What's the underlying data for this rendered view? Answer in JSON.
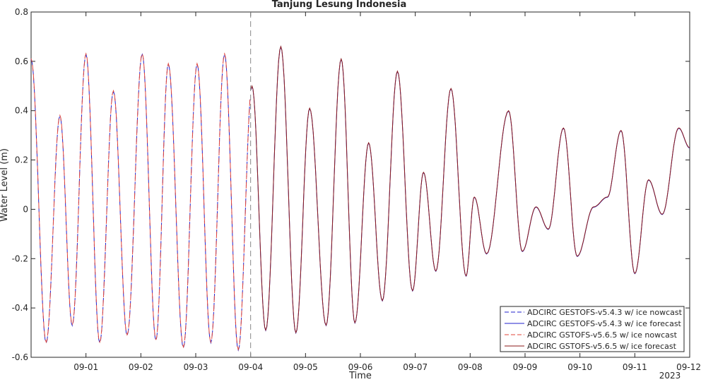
{
  "chart_data": {
    "type": "line",
    "title": "Tanjung Lesung Indonesia",
    "xlabel": "Time",
    "ylabel": "Water Level (m)",
    "x_year_label": "2023",
    "ylim": [
      -0.6,
      0.8
    ],
    "xlim": [
      "2023-08-31T00:00",
      "2023-09-12T00:00"
    ],
    "x_ticks": [
      "09-01",
      "09-02",
      "09-03",
      "09-04",
      "09-05",
      "09-06",
      "09-07",
      "09-08",
      "09-09",
      "09-10",
      "09-11",
      "09-12"
    ],
    "y_ticks": [
      "-0.6",
      "-0.4",
      "-0.2",
      "0",
      "0.2",
      "0.4",
      "0.6",
      "0.8"
    ],
    "grid": false,
    "nowcast_end": "2023-09-05T00:00",
    "legend_position": "bottom-right",
    "legend": [
      "ADCIRC GESTOFS-v5.4.3 w/ ice nowcast",
      "ADCIRC GESTOFS-v5.4.3 w/ ice forecast",
      "ADCIRC GSTOFS-v5.6.5 w/ ice nowcast",
      "ADCIRC GSTOFS-v5.6.5 w/ ice forecast"
    ],
    "series_colors": [
      "#2222cc",
      "#2222cc",
      "#e0453a",
      "#8b1a1a"
    ],
    "series_dashed": [
      true,
      false,
      true,
      false
    ],
    "x_unit": "hours after 2023-08-31T00:00",
    "extrema": [
      [
        0.0,
        0.61
      ],
      [
        0.55,
        -0.54
      ],
      [
        1.05,
        0.38
      ],
      [
        1.5,
        -0.47
      ],
      [
        2.0,
        0.63
      ],
      [
        2.5,
        -0.54
      ],
      [
        3.0,
        0.48
      ],
      [
        3.5,
        -0.51
      ],
      [
        4.05,
        0.63
      ],
      [
        4.55,
        -0.53
      ],
      [
        5.0,
        0.59
      ],
      [
        5.55,
        -0.56
      ],
      [
        6.05,
        0.59
      ],
      [
        6.55,
        -0.54
      ],
      [
        7.05,
        0.63
      ],
      [
        7.55,
        -0.57
      ],
      [
        8.05,
        0.5
      ],
      [
        8.55,
        -0.49
      ],
      [
        9.1,
        0.66
      ],
      [
        9.65,
        -0.5
      ],
      [
        10.15,
        0.41
      ],
      [
        10.75,
        -0.47
      ],
      [
        11.3,
        0.61
      ],
      [
        11.8,
        -0.46
      ],
      [
        12.3,
        0.27
      ],
      [
        12.8,
        -0.37
      ],
      [
        13.35,
        0.56
      ],
      [
        13.9,
        -0.33
      ],
      [
        14.3,
        0.15
      ],
      [
        14.75,
        -0.25
      ],
      [
        15.3,
        0.49
      ],
      [
        15.85,
        -0.27
      ],
      [
        16.15,
        0.05
      ],
      [
        16.6,
        -0.18
      ],
      [
        17.4,
        0.4
      ],
      [
        17.9,
        -0.17
      ],
      [
        18.4,
        0.01
      ],
      [
        18.85,
        -0.08
      ],
      [
        19.4,
        0.33
      ],
      [
        19.9,
        -0.19
      ],
      [
        20.5,
        0.01
      ],
      [
        21.0,
        0.05
      ],
      [
        21.5,
        0.32
      ],
      [
        22.0,
        -0.26
      ],
      [
        22.5,
        0.12
      ],
      [
        23.0,
        -0.02
      ],
      [
        23.6,
        0.33
      ],
      [
        24.0,
        0.25
      ]
    ]
  }
}
